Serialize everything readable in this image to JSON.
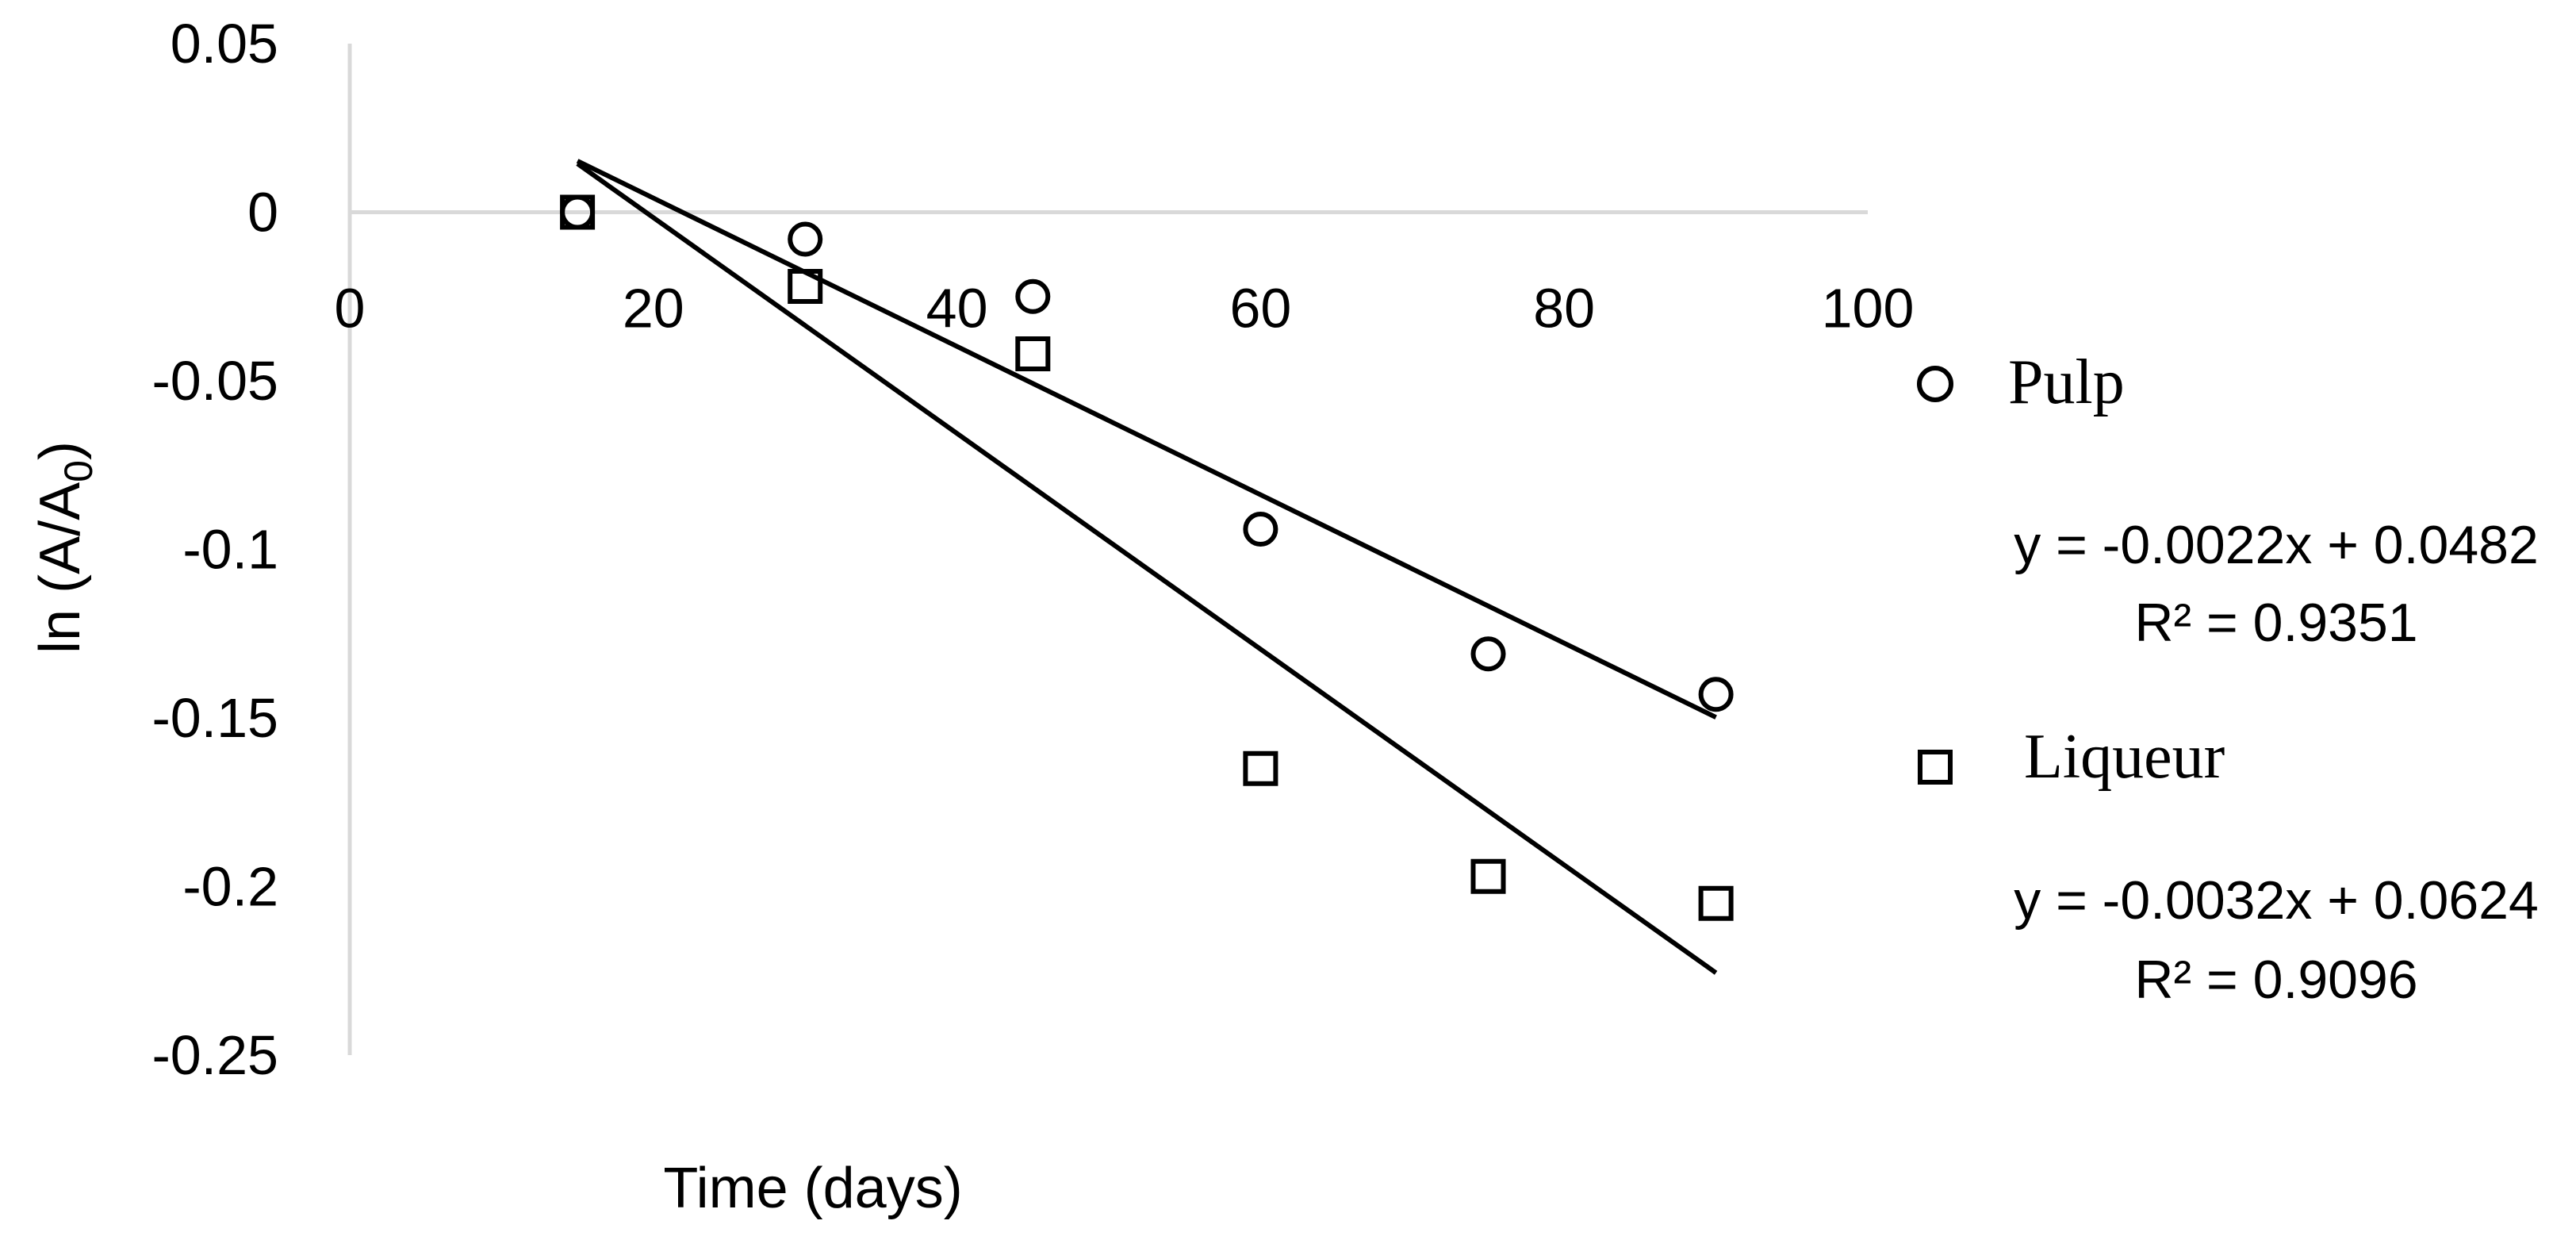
{
  "chart_data": {
    "type": "scatter",
    "title": "",
    "xlabel": "Time (days)",
    "ylabel": "ln (A/A",
    "ylabel_subscript": "0",
    "ylabel_close": ")",
    "xlim": [
      0,
      100
    ],
    "ylim": [
      -0.25,
      0.05
    ],
    "x_ticks": [
      "0",
      "20",
      "40",
      "60",
      "80",
      "100"
    ],
    "y_ticks": [
      "0.05",
      "0",
      "-0.05",
      "-0.1",
      "-0.15",
      "-0.2",
      "-0.25"
    ],
    "grid": false,
    "legend_position": "right",
    "series": [
      {
        "name": "Pulp",
        "marker": "circle",
        "color": "#000000",
        "x": [
          15,
          30,
          45,
          60,
          75,
          90
        ],
        "y": [
          0.0,
          -0.008,
          -0.025,
          -0.094,
          -0.131,
          -0.143
        ],
        "trendline": {
          "slope": -0.0022,
          "intercept": 0.0482,
          "x_range": [
            15,
            90
          ],
          "equation": "y = -0.0022x + 0.0482",
          "r2": "R² = 0.9351"
        }
      },
      {
        "name": "Liqueur",
        "marker": "square",
        "color": "#000000",
        "x": [
          15,
          30,
          45,
          60,
          75,
          90
        ],
        "y": [
          0.0,
          -0.022,
          -0.042,
          -0.165,
          -0.197,
          -0.205
        ],
        "trendline": {
          "slope": -0.0032,
          "intercept": 0.0624,
          "x_range": [
            15,
            90
          ],
          "equation": "y = -0.0032x + 0.0624",
          "r2": "R² = 0.9096"
        }
      }
    ]
  }
}
